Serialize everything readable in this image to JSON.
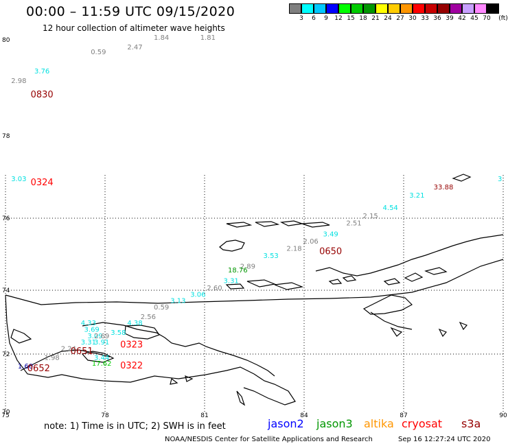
{
  "header": {
    "title": "00:00 – 11:59 UTC 09/15/2020",
    "subtitle": "12 hour collection of altimeter wave heights"
  },
  "legend": {
    "unit": "(ft)",
    "bins": [
      {
        "label": "3",
        "color": "#7f7f7f"
      },
      {
        "label": "6",
        "color": "#00ffff"
      },
      {
        "label": "9",
        "color": "#00c8ff"
      },
      {
        "label": "12",
        "color": "#0000ff"
      },
      {
        "label": "15",
        "color": "#00ff00"
      },
      {
        "label": "18",
        "color": "#00cc00"
      },
      {
        "label": "21",
        "color": "#009600"
      },
      {
        "label": "24",
        "color": "#ffff00"
      },
      {
        "label": "27",
        "color": "#ffcc00"
      },
      {
        "label": "30",
        "color": "#ff9600"
      },
      {
        "label": "33",
        "color": "#ff0000"
      },
      {
        "label": "36",
        "color": "#c80000"
      },
      {
        "label": "39",
        "color": "#960000"
      },
      {
        "label": "42",
        "color": "#a000a0"
      },
      {
        "label": "45",
        "color": "#c8a0ff"
      },
      {
        "label": "70",
        "color": "#ff88ff"
      },
      {
        "label": "",
        "color": "#000000"
      }
    ]
  },
  "axes": {
    "x_ticks": [
      "75",
      "78",
      "81",
      "84",
      "87",
      "90"
    ],
    "y_ticks": [
      "80",
      "78",
      "76",
      "74",
      "72",
      "70"
    ]
  },
  "observations": [
    {
      "text": "1.81",
      "color": "#7f7f7f",
      "lon": 81.1,
      "lat": 80.0
    },
    {
      "text": "1.84",
      "color": "#7f7f7f",
      "lon": 79.7,
      "lat": 80.0
    },
    {
      "text": "2.47",
      "color": "#7f7f7f",
      "lon": 78.9,
      "lat": 79.8
    },
    {
      "text": "0.59",
      "color": "#7f7f7f",
      "lon": 77.8,
      "lat": 79.7
    },
    {
      "text": "3.76",
      "color": "#00e0e0",
      "lon": 76.1,
      "lat": 79.3
    },
    {
      "text": "2.98",
      "color": "#7f7f7f",
      "lon": 75.4,
      "lat": 79.1
    },
    {
      "text": "3.03",
      "color": "#00e0e0",
      "lon": 75.4,
      "lat": 76.9
    },
    {
      "text": "3",
      "color": "#00e0e0",
      "lon": 89.9,
      "lat": 76.9
    },
    {
      "text": "33.88",
      "color": "#960000",
      "lon": 88.2,
      "lat": 76.7
    },
    {
      "text": "3.21",
      "color": "#00e0e0",
      "lon": 87.4,
      "lat": 76.5
    },
    {
      "text": "4.54",
      "color": "#00e0e0",
      "lon": 86.6,
      "lat": 76.2
    },
    {
      "text": "2.15",
      "color": "#7f7f7f",
      "lon": 86.0,
      "lat": 76.0
    },
    {
      "text": "2.51",
      "color": "#7f7f7f",
      "lon": 85.5,
      "lat": 75.8
    },
    {
      "text": "3.49",
      "color": "#00e0e0",
      "lon": 84.8,
      "lat": 75.5
    },
    {
      "text": "2.06",
      "color": "#7f7f7f",
      "lon": 84.2,
      "lat": 75.3
    },
    {
      "text": "2.18",
      "color": "#7f7f7f",
      "lon": 83.7,
      "lat": 75.1
    },
    {
      "text": "3.53",
      "color": "#00e0e0",
      "lon": 83.0,
      "lat": 74.9
    },
    {
      "text": "2.89",
      "color": "#7f7f7f",
      "lon": 82.3,
      "lat": 74.6
    },
    {
      "text": "18.76",
      "color": "#009600",
      "lon": 82.0,
      "lat": 74.5
    },
    {
      "text": "3.31",
      "color": "#00e0e0",
      "lon": 81.8,
      "lat": 74.2
    },
    {
      "text": "2.60",
      "color": "#7f7f7f",
      "lon": 81.3,
      "lat": 74.0
    },
    {
      "text": "3.06",
      "color": "#00e0e0",
      "lon": 80.8,
      "lat": 73.8
    },
    {
      "text": "3.13",
      "color": "#00e0e0",
      "lon": 80.2,
      "lat": 73.6
    },
    {
      "text": "0.59",
      "color": "#7f7f7f",
      "lon": 79.7,
      "lat": 73.4
    },
    {
      "text": "2.56",
      "color": "#7f7f7f",
      "lon": 79.3,
      "lat": 73.1
    },
    {
      "text": "4.38",
      "color": "#00e0e0",
      "lon": 78.9,
      "lat": 72.9
    },
    {
      "text": "4.33",
      "color": "#00e0e0",
      "lon": 77.5,
      "lat": 72.9
    },
    {
      "text": "3.69",
      "color": "#00e0e0",
      "lon": 77.6,
      "lat": 72.7
    },
    {
      "text": "3.58",
      "color": "#00e0e0",
      "lon": 78.4,
      "lat": 72.6
    },
    {
      "text": "3.09",
      "color": "#00e0e0",
      "lon": 77.7,
      "lat": 72.5
    },
    {
      "text": "2.69",
      "color": "#7f7f7f",
      "lon": 77.9,
      "lat": 72.5
    },
    {
      "text": "3.31",
      "color": "#00e0e0",
      "lon": 77.5,
      "lat": 72.3
    },
    {
      "text": "3.91",
      "color": "#00e0e0",
      "lon": 77.9,
      "lat": 72.3
    },
    {
      "text": "2.24",
      "color": "#7f7f7f",
      "lon": 76.9,
      "lat": 72.1
    },
    {
      "text": "3.44",
      "color": "#00e0e0",
      "lon": 77.9,
      "lat": 71.8
    },
    {
      "text": "1.98",
      "color": "#7f7f7f",
      "lon": 76.4,
      "lat": 71.8
    },
    {
      "text": "17.62",
      "color": "#00cc00",
      "lon": 77.9,
      "lat": 71.6
    },
    {
      "text": "1.60",
      "color": "#0000a0",
      "lon": 75.6,
      "lat": 71.5
    }
  ],
  "pass_times": [
    {
      "text": "0830",
      "color": "#960000",
      "lon": 76.1,
      "lat": 78.8
    },
    {
      "text": "0324",
      "color": "#ff0000",
      "lon": 76.1,
      "lat": 76.8
    },
    {
      "text": "0650",
      "color": "#960000",
      "lon": 84.8,
      "lat": 75.0
    },
    {
      "text": "0323",
      "color": "#ff0000",
      "lon": 78.8,
      "lat": 72.2
    },
    {
      "text": "0651",
      "color": "#960000",
      "lon": 77.3,
      "lat": 72.0
    },
    {
      "text": "0322",
      "color": "#ff0000",
      "lon": 78.8,
      "lat": 71.5
    },
    {
      "text": "0652",
      "color": "#960000",
      "lon": 76.0,
      "lat": 71.4
    }
  ],
  "notes": {
    "note": "note: 1) Time is in UTC; 2) SWH is in feet",
    "satellites": [
      {
        "name": "jason2",
        "color": "#0000ff"
      },
      {
        "name": "jason3",
        "color": "#009600"
      },
      {
        "name": "altika",
        "color": "#ff9600"
      },
      {
        "name": "cryosat",
        "color": "#ff0000"
      },
      {
        "name": "s3a",
        "color": "#960000"
      }
    ],
    "credit": "NOAA/NESDIS Center for Satellite Applications and Research",
    "generated": "Sep 16 12:27:24 UTC 2020"
  }
}
